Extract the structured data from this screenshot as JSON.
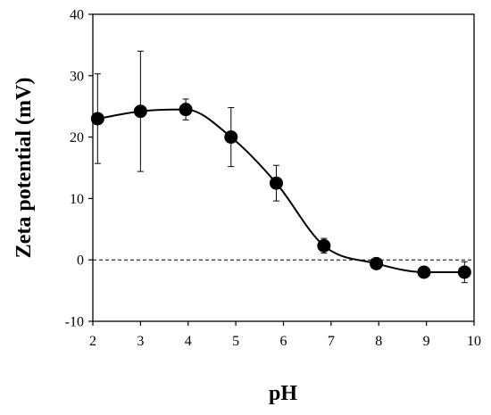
{
  "chart_data": {
    "type": "scatter",
    "xlabel": "pH",
    "ylabel": "Zeta potential (mV)",
    "xlim": [
      2,
      10
    ],
    "ylim": [
      -10,
      40
    ],
    "xticks": [
      2,
      3,
      4,
      5,
      6,
      7,
      8,
      9,
      10
    ],
    "yticks": [
      -10,
      0,
      10,
      20,
      30,
      40
    ],
    "grid": false,
    "legend": "none",
    "reference_line": {
      "y": 0,
      "style": "dashed"
    },
    "trend_line": "smooth",
    "series": [
      {
        "x": [
          2.1,
          3.0,
          3.95,
          4.9,
          5.85,
          6.85,
          7.95,
          8.95,
          9.8
        ],
        "y": [
          23.0,
          24.2,
          24.5,
          20.0,
          12.5,
          2.3,
          -0.6,
          -2.0,
          -2.0
        ],
        "error": [
          7.3,
          9.8,
          1.7,
          4.8,
          2.9,
          1.2,
          0.5,
          0.5,
          1.7
        ],
        "color": "#000000"
      }
    ]
  }
}
